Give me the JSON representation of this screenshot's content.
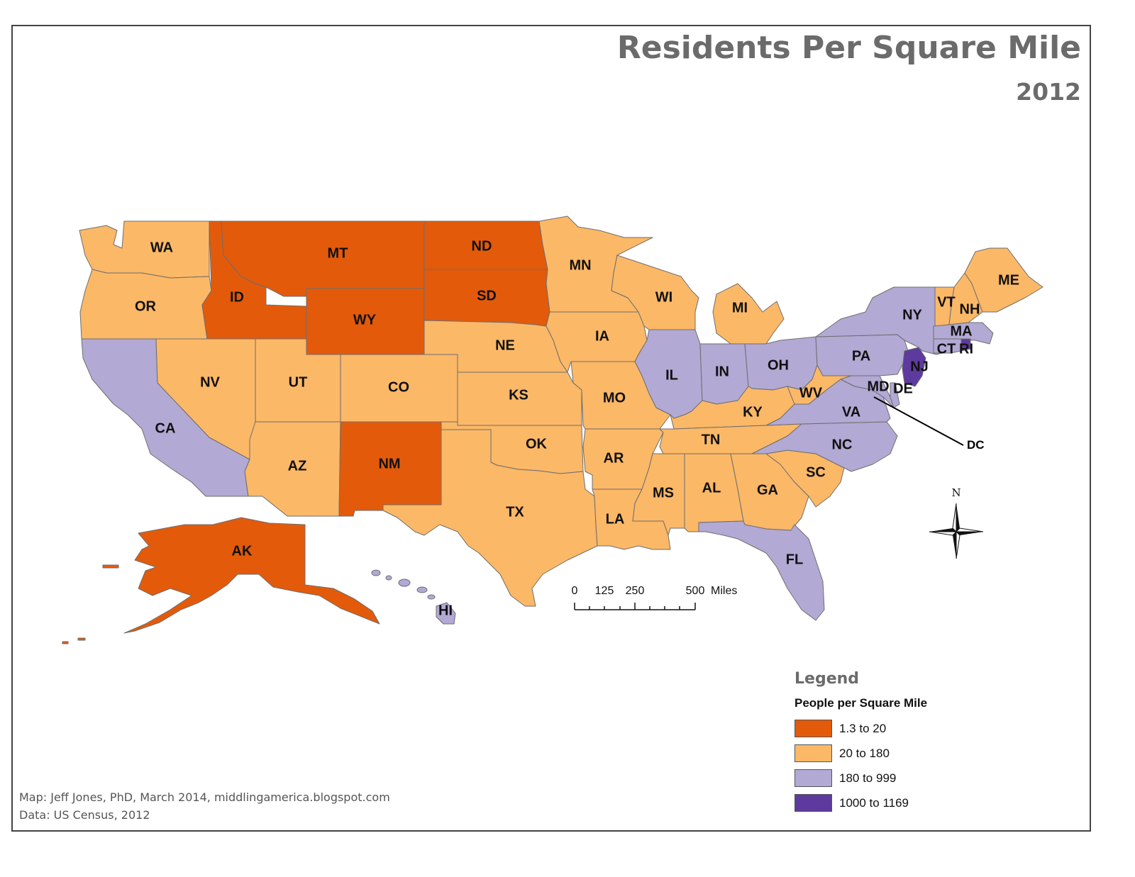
{
  "title": "Residents Per Square Mile",
  "subtitle": "2012",
  "legend": {
    "heading": "Legend",
    "subheading": "People per Square Mile",
    "classes": [
      {
        "label": "1.3 to 20",
        "color": "#e35a0b"
      },
      {
        "label": "20 to 180",
        "color": "#fbb867"
      },
      {
        "label": "180 to 999",
        "color": "#b2a9d4"
      },
      {
        "label": "1000 to 1169",
        "color": "#5d3b9e"
      }
    ]
  },
  "states": [
    {
      "abbr": "WA",
      "class": 1
    },
    {
      "abbr": "OR",
      "class": 1
    },
    {
      "abbr": "CA",
      "class": 2
    },
    {
      "abbr": "ID",
      "class": 0
    },
    {
      "abbr": "NV",
      "class": 1
    },
    {
      "abbr": "MT",
      "class": 0
    },
    {
      "abbr": "WY",
      "class": 0
    },
    {
      "abbr": "UT",
      "class": 1
    },
    {
      "abbr": "AZ",
      "class": 1
    },
    {
      "abbr": "CO",
      "class": 1
    },
    {
      "abbr": "NM",
      "class": 0
    },
    {
      "abbr": "ND",
      "class": 0
    },
    {
      "abbr": "SD",
      "class": 0
    },
    {
      "abbr": "NE",
      "class": 1
    },
    {
      "abbr": "KS",
      "class": 1
    },
    {
      "abbr": "OK",
      "class": 1
    },
    {
      "abbr": "TX",
      "class": 1
    },
    {
      "abbr": "MN",
      "class": 1
    },
    {
      "abbr": "IA",
      "class": 1
    },
    {
      "abbr": "MO",
      "class": 1
    },
    {
      "abbr": "AR",
      "class": 1
    },
    {
      "abbr": "LA",
      "class": 1
    },
    {
      "abbr": "WI",
      "class": 1
    },
    {
      "abbr": "IL",
      "class": 2
    },
    {
      "abbr": "MI",
      "class": 1
    },
    {
      "abbr": "IN",
      "class": 2
    },
    {
      "abbr": "OH",
      "class": 2
    },
    {
      "abbr": "KY",
      "class": 1
    },
    {
      "abbr": "TN",
      "class": 1
    },
    {
      "abbr": "MS",
      "class": 1
    },
    {
      "abbr": "AL",
      "class": 1
    },
    {
      "abbr": "GA",
      "class": 1
    },
    {
      "abbr": "FL",
      "class": 2
    },
    {
      "abbr": "SC",
      "class": 1
    },
    {
      "abbr": "NC",
      "class": 2
    },
    {
      "abbr": "VA",
      "class": 2
    },
    {
      "abbr": "WV",
      "class": 1
    },
    {
      "abbr": "PA",
      "class": 2
    },
    {
      "abbr": "NY",
      "class": 2
    },
    {
      "abbr": "VT",
      "class": 1
    },
    {
      "abbr": "NH",
      "class": 1
    },
    {
      "abbr": "ME",
      "class": 1
    },
    {
      "abbr": "MA",
      "class": 2
    },
    {
      "abbr": "CT",
      "class": 2
    },
    {
      "abbr": "RI",
      "class": 3
    },
    {
      "abbr": "NJ",
      "class": 3
    },
    {
      "abbr": "DE",
      "class": 2
    },
    {
      "abbr": "MD",
      "class": 2
    },
    {
      "abbr": "AK",
      "class": 0
    },
    {
      "abbr": "HI",
      "class": 2
    }
  ],
  "callout_label": "DC",
  "scale_bar": {
    "ticks": [
      "0",
      "125",
      "250",
      "500"
    ],
    "unit": "Miles"
  },
  "north_arrow": {
    "label": "N",
    "icon": "compass-rose-icon"
  },
  "credits": {
    "line1": "Map:  Jeff Jones, PhD, March 2014, middlingamerica.blogspot.com",
    "line2": "Data:  US Census, 2012"
  }
}
